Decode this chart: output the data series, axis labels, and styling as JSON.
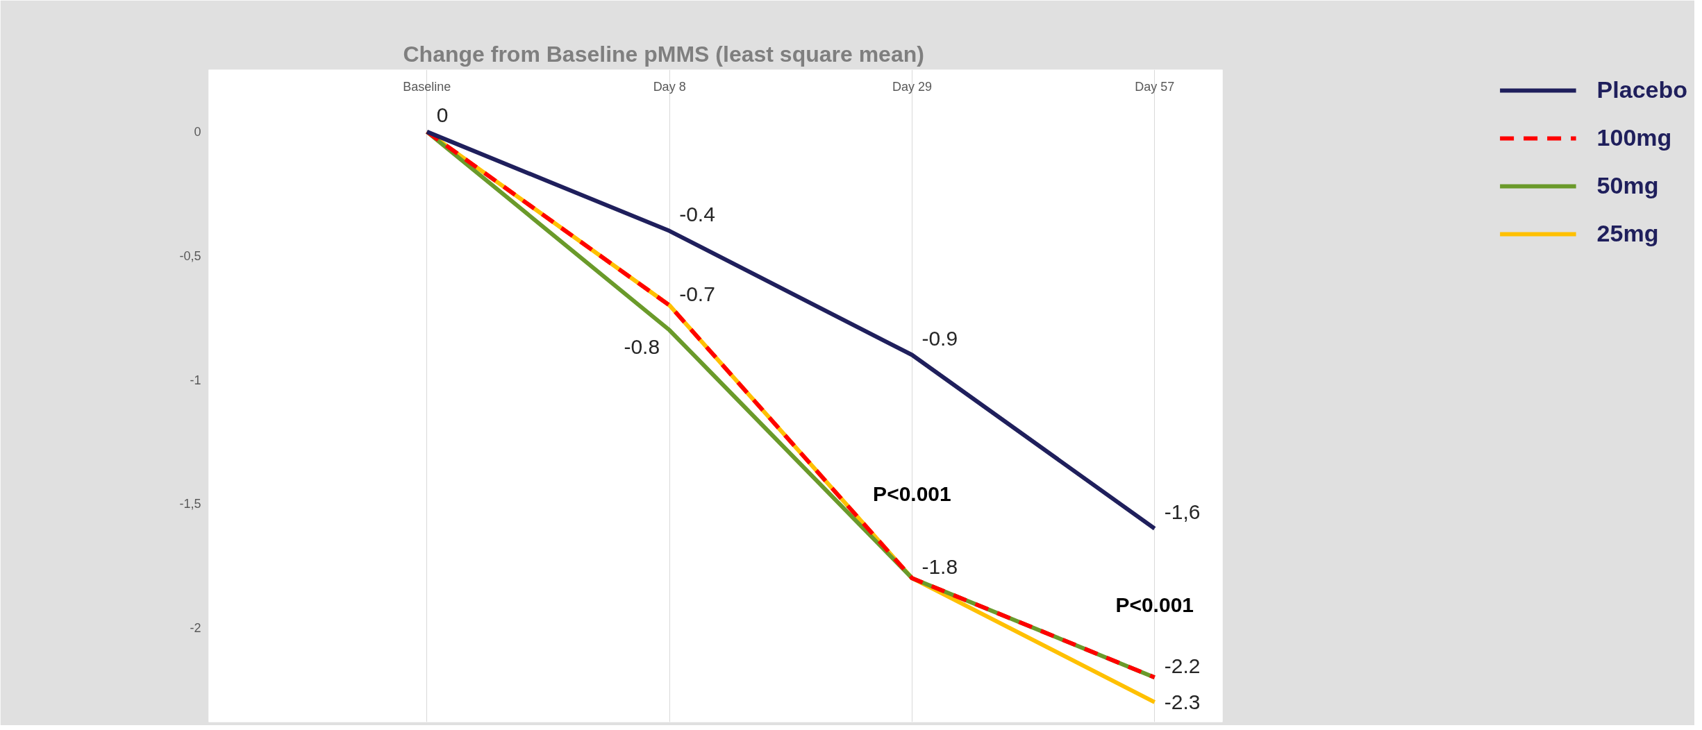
{
  "chart_data": {
    "type": "line",
    "title": "Change from Baseline pMMS (least square mean)",
    "categories": [
      "Baseline",
      "Day 8",
      "Day 29",
      "Day 57"
    ],
    "series": [
      {
        "name": "Placebo",
        "color": "#1f1f5c",
        "values": [
          0,
          -0.4,
          -0.9,
          -1.6
        ],
        "value_labels": [
          "0",
          "-0.4",
          "-0.9",
          "-1,6"
        ]
      },
      {
        "name": "100mg",
        "color": "#ff0000",
        "values": [
          0,
          -0.7,
          -1.8,
          -2.2
        ],
        "line_style": "dashed",
        "value_labels": [
          null,
          "-0.7",
          "-1.8",
          "-2.2"
        ]
      },
      {
        "name": "50mg",
        "color": "#6a9a2a",
        "values": [
          0,
          -0.8,
          -1.8,
          -2.2
        ],
        "value_labels": [
          null,
          "-0.8",
          null,
          null
        ]
      },
      {
        "name": "25mg",
        "color": "#ffc000",
        "values": [
          0,
          -0.7,
          -1.8,
          -2.3
        ],
        "value_labels": [
          null,
          null,
          null,
          "-2.3"
        ]
      }
    ],
    "ylim": [
      -2.38,
      0.25
    ],
    "yticks": [
      0,
      {
        "value": -0.5,
        "label": "-0,5"
      },
      -1,
      {
        "value": -1.5,
        "label": "-1,5"
      },
      -2
    ],
    "grid": "x",
    "legend": "right",
    "line_style": "solid",
    "marker": "none",
    "annotations": [
      "P<0.001",
      "P<0.001"
    ]
  }
}
